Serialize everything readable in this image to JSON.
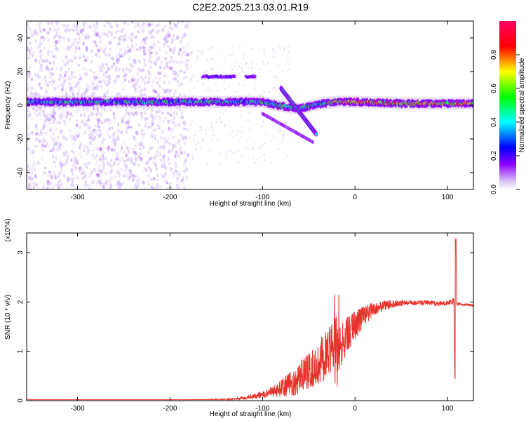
{
  "figure_title": "C2E2.2025.213.03.01.R19",
  "chart_data": [
    {
      "type": "heatmap",
      "title": "",
      "xlabel": "Height of straight line (km)",
      "ylabel": "Frequency (Hz)",
      "xlim": [
        -355,
        128
      ],
      "ylim": [
        -50,
        50
      ],
      "xticks": [
        -300,
        -200,
        -100,
        0,
        100
      ],
      "yticks": [
        -40,
        -20,
        0,
        20,
        40
      ],
      "grid": false,
      "colorbar": {
        "label": "Normalized spectral amplitude",
        "range": [
          0,
          1
        ],
        "ticks": [
          "0.0",
          "0.2",
          "0.4",
          "0.6",
          "0.8"
        ],
        "colors": [
          "#ffffff",
          "#c9a8f5",
          "#8b00ff",
          "#0000ff",
          "#00ffff",
          "#00ff00",
          "#ffff00",
          "#ff0000",
          "#ff0066"
        ]
      },
      "features": {
        "carrier_line": {
          "x": [
            -355,
            -150,
            -100,
            -85,
            -60,
            -45,
            -35,
            -20,
            0,
            50,
            100,
            128
          ],
          "y": [
            2,
            2,
            2,
            0,
            -2,
            0,
            1,
            2,
            2,
            1,
            1,
            1
          ],
          "peak_amplitude": 0.95
        },
        "noise_region_x": [
          -355,
          -180
        ],
        "upper_band": {
          "x": [
            -165,
            -108
          ],
          "y": 17
        },
        "descending_branch": {
          "x": [
            -80,
            -42
          ],
          "y": [
            10,
            -17
          ]
        },
        "lower_branch": {
          "x": [
            -100,
            -45
          ],
          "y": [
            -5,
            -22
          ]
        }
      }
    },
    {
      "type": "line",
      "title": "",
      "xlabel": "Height of straight line (km)",
      "ylabel": "SNR (10 * v/v)",
      "y_multiplier": "(x10^4)",
      "xlim": [
        -355,
        128
      ],
      "ylim": [
        0,
        3.4
      ],
      "xticks": [
        -300,
        -200,
        -100,
        0,
        100
      ],
      "yticks": [
        0,
        1,
        2,
        3
      ],
      "grid": false,
      "series": [
        {
          "color": "#e8312a",
          "x": [
            -355,
            -250,
            -180,
            -140,
            -120,
            -110,
            -100,
            -90,
            -80,
            -70,
            -60,
            -50,
            -40,
            -30,
            -25,
            -20,
            -15,
            -10,
            0,
            10,
            20,
            30,
            40,
            50,
            60,
            70,
            80,
            90,
            100,
            105,
            107,
            108,
            109,
            110,
            112,
            115,
            128
          ],
          "y": [
            0.02,
            0.02,
            0.02,
            0.03,
            0.06,
            0.1,
            0.15,
            0.22,
            0.3,
            0.42,
            0.55,
            0.72,
            0.9,
            1.1,
            1.2,
            1.3,
            1.2,
            1.45,
            1.6,
            1.78,
            1.9,
            1.95,
            1.98,
            2.0,
            2.0,
            2.0,
            2.0,
            1.98,
            2.0,
            2.02,
            2.05,
            0.45,
            3.35,
            1.95,
            1.97,
            1.96,
            1.94
          ],
          "fluctuation_amplitude": [
            0,
            0,
            0,
            0.01,
            0.03,
            0.05,
            0.08,
            0.12,
            0.18,
            0.25,
            0.35,
            0.4,
            0.45,
            0.5,
            0.6,
            0.85,
            0.45,
            0.4,
            0.3,
            0.2,
            0.15,
            0.1,
            0.08,
            0.06,
            0.05,
            0.05,
            0.05,
            0.05,
            0.05,
            0.08,
            0.1,
            0,
            0,
            0.04,
            0.03,
            0.02,
            0.02
          ]
        }
      ]
    }
  ]
}
